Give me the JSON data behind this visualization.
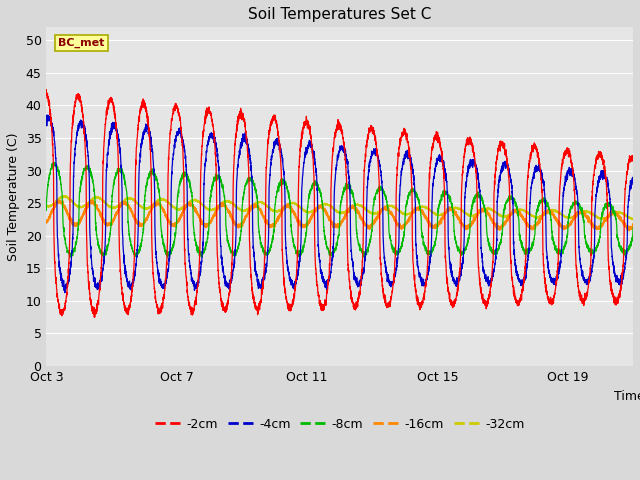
{
  "title": "Soil Temperatures Set C",
  "xlabel": "Time",
  "ylabel": "Soil Temperature (C)",
  "ylim": [
    0,
    52
  ],
  "yticks": [
    0,
    5,
    10,
    15,
    20,
    25,
    30,
    35,
    40,
    45,
    50
  ],
  "xtick_labels": [
    "Oct 3",
    "Oct 7",
    "Oct 11",
    "Oct 15",
    "Oct 19"
  ],
  "xtick_positions": [
    0,
    4,
    8,
    12,
    16
  ],
  "xlim": [
    0,
    18
  ],
  "annotation": "BC_met",
  "bg_color": "#d9d9d9",
  "plot_bg_color": "#e5e5e5",
  "legend_entries": [
    "-2cm",
    "-4cm",
    "-8cm",
    "-16cm",
    "-32cm"
  ],
  "line_colors": [
    "#ff0000",
    "#0000cc",
    "#00bb00",
    "#ff8800",
    "#cccc00"
  ],
  "num_days": 18
}
